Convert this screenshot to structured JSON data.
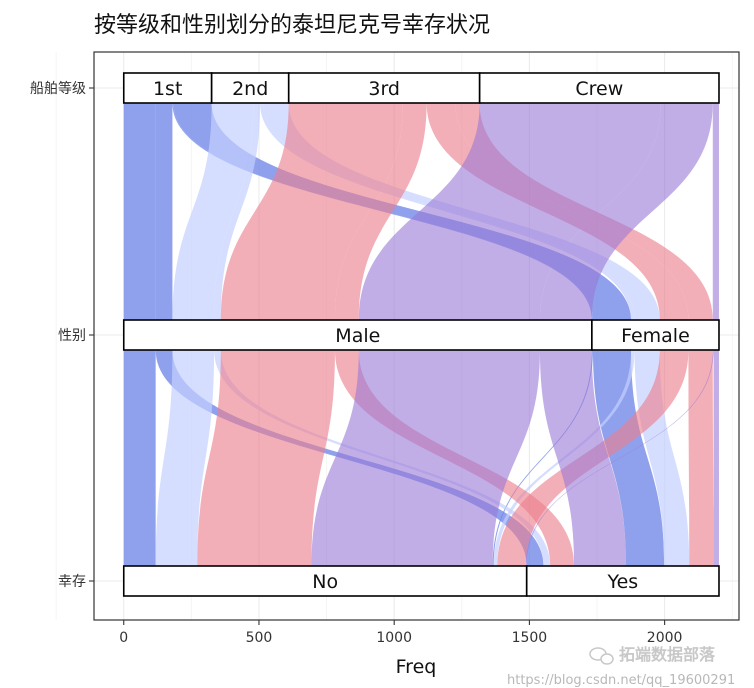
{
  "chart_data": {
    "type": "alluvial",
    "title": "按等级和性别划分的泰坦尼克号幸存状况",
    "xlabel": "Freq",
    "xlim": [
      -110,
      2275
    ],
    "x_ticks": [
      0,
      500,
      1000,
      1500,
      2000
    ],
    "x_tick_labels": [
      "0",
      "500",
      "1000",
      "1500",
      "2000"
    ],
    "axes": [
      "船舶等级",
      "性别",
      "幸存"
    ],
    "grid": true,
    "strata": {
      "船舶等级": [
        {
          "label": "1st",
          "count": 325
        },
        {
          "label": "2nd",
          "count": 285
        },
        {
          "label": "3rd",
          "count": 706
        },
        {
          "label": "Crew",
          "count": 885
        }
      ],
      "性别": [
        {
          "label": "Male",
          "count": 1731
        },
        {
          "label": "Female",
          "count": 470
        }
      ],
      "幸存": [
        {
          "label": "No",
          "count": 1490
        },
        {
          "label": "Yes",
          "count": 711
        }
      ]
    },
    "flows": [
      {
        "class": "1st",
        "sex": "Male",
        "survived": "No",
        "freq": 118,
        "color": "#6f86e8",
        "opacity": 0.78
      },
      {
        "class": "1st",
        "sex": "Male",
        "survived": "Yes",
        "freq": 62,
        "color": "#6f86e8",
        "opacity": 0.78
      },
      {
        "class": "1st",
        "sex": "Female",
        "survived": "No",
        "freq": 4,
        "color": "#6f86e8",
        "opacity": 0.78
      },
      {
        "class": "1st",
        "sex": "Female",
        "survived": "Yes",
        "freq": 141,
        "color": "#6f86e8",
        "opacity": 0.78
      },
      {
        "class": "2nd",
        "sex": "Male",
        "survived": "No",
        "freq": 154,
        "color": "#c4d0ff",
        "opacity": 0.7
      },
      {
        "class": "2nd",
        "sex": "Male",
        "survived": "Yes",
        "freq": 25,
        "color": "#c4d0ff",
        "opacity": 0.7
      },
      {
        "class": "2nd",
        "sex": "Female",
        "survived": "No",
        "freq": 13,
        "color": "#c4d0ff",
        "opacity": 0.7
      },
      {
        "class": "2nd",
        "sex": "Female",
        "survived": "Yes",
        "freq": 93,
        "color": "#c4d0ff",
        "opacity": 0.7
      },
      {
        "class": "3rd",
        "sex": "Male",
        "survived": "No",
        "freq": 422,
        "color": "#ec7e8d",
        "opacity": 0.62
      },
      {
        "class": "3rd",
        "sex": "Male",
        "survived": "Yes",
        "freq": 88,
        "color": "#ec7e8d",
        "opacity": 0.62
      },
      {
        "class": "3rd",
        "sex": "Female",
        "survived": "No",
        "freq": 106,
        "color": "#ec7e8d",
        "opacity": 0.62
      },
      {
        "class": "3rd",
        "sex": "Female",
        "survived": "Yes",
        "freq": 90,
        "color": "#ec7e8d",
        "opacity": 0.62
      },
      {
        "class": "Crew",
        "sex": "Male",
        "survived": "No",
        "freq": 670,
        "color": "#9a78d6",
        "opacity": 0.6
      },
      {
        "class": "Crew",
        "sex": "Male",
        "survived": "Yes",
        "freq": 192,
        "color": "#9a78d6",
        "opacity": 0.6
      },
      {
        "class": "Crew",
        "sex": "Female",
        "survived": "No",
        "freq": 3,
        "color": "#9a78d6",
        "opacity": 0.6
      },
      {
        "class": "Crew",
        "sex": "Female",
        "survived": "Yes",
        "freq": 20,
        "color": "#9a78d6",
        "opacity": 0.6
      }
    ]
  },
  "watermark": {
    "url": "https://blog.csdn.net/qq_19600291",
    "brand": "拓端数据部落"
  }
}
